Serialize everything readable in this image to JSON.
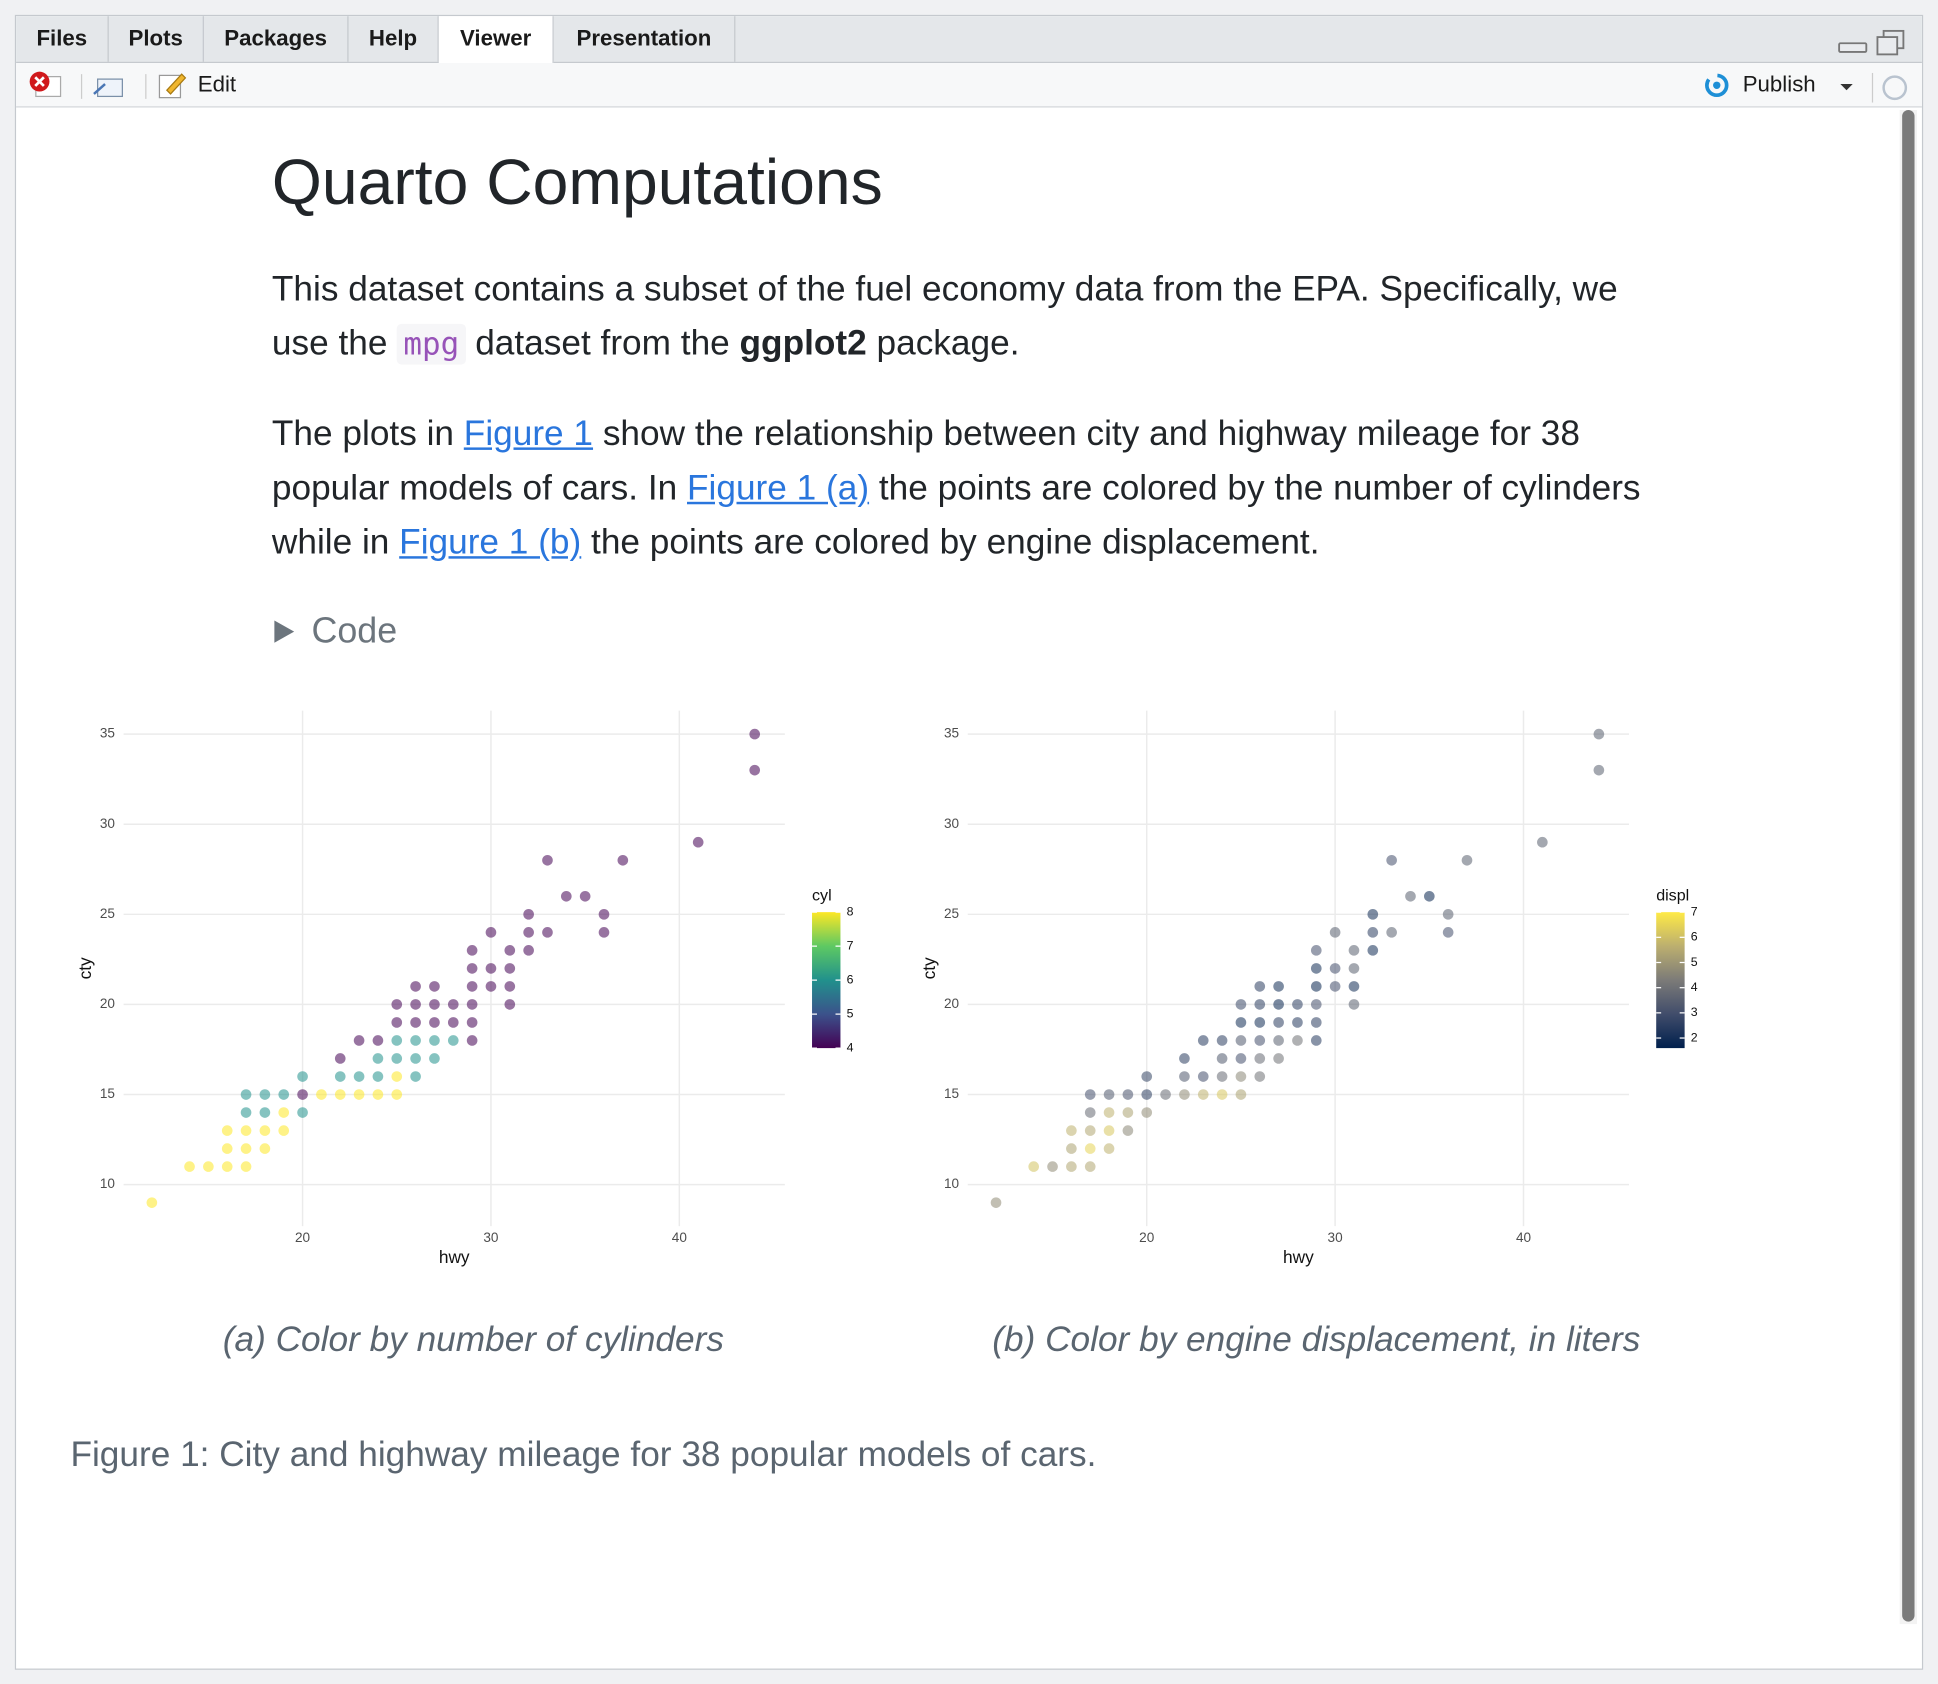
{
  "tabs": [
    "Files",
    "Plots",
    "Packages",
    "Help",
    "Viewer",
    "Presentation"
  ],
  "toolbar": {
    "edit": "Edit",
    "publish": "Publish"
  },
  "document": {
    "title": "Quarto Computations",
    "paragraphs": [
      [
        "This dataset contains a subset of the fuel economy data from the EPA. Specifically, we use the ",
        "mpg",
        " dataset from the ",
        "ggplot2",
        " package."
      ],
      [
        "The plots in ",
        "Figure 1",
        " show the relationship between city and highway mileage for 38 popular models of cars. In ",
        "Figure 1 (a)",
        " the points are colored by the number of cylinders while in ",
        "Figure 1 (b)",
        " the points are colored by engine displacement."
      ]
    ],
    "code_toggle": "Code",
    "figure_caption": "Figure 1: City and highway mileage for 38 popular models of cars."
  },
  "chart_data": [
    {
      "type": "scatter",
      "caption": "(a) Color by number of cylinders",
      "xlabel": "hwy",
      "ylabel": "cty",
      "legend_title": "cyl",
      "x": [
        12,
        14,
        15,
        16,
        17,
        16,
        17,
        18,
        16,
        17,
        18,
        19,
        17,
        18,
        19,
        20,
        17,
        18,
        19,
        20,
        21,
        22,
        23,
        24,
        25,
        20,
        22,
        23,
        24,
        25,
        26,
        22,
        24,
        25,
        26,
        27,
        23,
        24,
        25,
        26,
        27,
        28,
        29,
        25,
        26,
        27,
        28,
        29,
        25,
        26,
        27,
        28,
        29,
        31,
        26,
        27,
        29,
        30,
        31,
        29,
        30,
        31,
        29,
        31,
        32,
        30,
        32,
        33,
        36,
        32,
        36,
        34,
        35,
        33,
        37,
        41,
        44,
        44
      ],
      "values": [
        9,
        11,
        11,
        11,
        11,
        12,
        12,
        12,
        13,
        13,
        13,
        13,
        14,
        14,
        14,
        14,
        15,
        15,
        15,
        15,
        15,
        15,
        15,
        15,
        15,
        16,
        16,
        16,
        16,
        16,
        16,
        17,
        17,
        17,
        17,
        17,
        18,
        18,
        18,
        18,
        18,
        18,
        18,
        19,
        19,
        19,
        19,
        19,
        20,
        20,
        20,
        20,
        20,
        20,
        21,
        21,
        21,
        21,
        21,
        22,
        22,
        22,
        23,
        23,
        23,
        24,
        24,
        24,
        24,
        25,
        25,
        26,
        26,
        28,
        28,
        29,
        33,
        35
      ],
      "color_values": [
        8,
        8,
        8,
        8,
        8,
        8,
        8,
        8,
        8,
        8,
        8,
        8,
        6,
        6,
        8,
        6,
        6,
        6,
        6,
        4,
        8,
        8,
        8,
        8,
        8,
        6,
        6,
        6,
        6,
        8,
        6,
        4,
        6,
        6,
        6,
        6,
        4,
        4,
        6,
        6,
        6,
        6,
        4,
        4,
        4,
        4,
        4,
        4,
        4,
        4,
        4,
        4,
        4,
        4,
        4,
        4,
        4,
        4,
        4,
        4,
        4,
        4,
        4,
        4,
        4,
        4,
        4,
        4,
        4,
        4,
        4,
        4,
        4,
        4,
        4,
        4,
        4,
        4
      ],
      "colormap": [
        "#440154",
        "#3b528b",
        "#21918c",
        "#5ec962",
        "#fde725"
      ],
      "color_lim": [
        4,
        8
      ],
      "color_ticks": [
        4,
        5,
        6,
        7,
        8
      ],
      "point_alpha": 0.55,
      "xlim": [
        10.5,
        45.6
      ],
      "ylim": [
        7.7,
        36.3
      ],
      "xticks": [
        20,
        30,
        40
      ],
      "yticks": [
        10,
        15,
        20,
        25,
        30,
        35
      ],
      "grid": true
    },
    {
      "type": "scatter",
      "caption": "(b) Color by engine displacement, in liters",
      "xlabel": "hwy",
      "ylabel": "cty",
      "legend_title": "displ",
      "x": [
        12,
        14,
        15,
        16,
        17,
        16,
        17,
        18,
        16,
        17,
        18,
        19,
        17,
        18,
        19,
        20,
        17,
        18,
        19,
        20,
        21,
        22,
        23,
        24,
        25,
        20,
        22,
        23,
        24,
        25,
        26,
        22,
        24,
        25,
        26,
        27,
        23,
        24,
        25,
        26,
        27,
        28,
        29,
        25,
        26,
        27,
        28,
        29,
        25,
        26,
        27,
        28,
        29,
        31,
        26,
        27,
        29,
        30,
        31,
        29,
        30,
        31,
        29,
        31,
        32,
        30,
        32,
        33,
        36,
        32,
        36,
        34,
        35,
        33,
        37,
        41,
        44,
        44
      ],
      "values": [
        9,
        11,
        11,
        11,
        11,
        12,
        12,
        12,
        13,
        13,
        13,
        13,
        14,
        14,
        14,
        14,
        15,
        15,
        15,
        15,
        15,
        15,
        15,
        15,
        15,
        16,
        16,
        16,
        16,
        16,
        16,
        17,
        17,
        17,
        17,
        17,
        18,
        18,
        18,
        18,
        18,
        18,
        18,
        19,
        19,
        19,
        19,
        19,
        20,
        20,
        20,
        20,
        20,
        20,
        21,
        21,
        21,
        21,
        21,
        22,
        22,
        22,
        23,
        23,
        23,
        24,
        24,
        24,
        24,
        25,
        25,
        26,
        26,
        28,
        28,
        29,
        33,
        35
      ],
      "color_values": [
        4.7,
        6.1,
        4.7,
        5.4,
        5.4,
        5.3,
        6.5,
        5.7,
        5.7,
        5.4,
        6.2,
        4.6,
        3.8,
        5.7,
        5.3,
        4.7,
        3.0,
        3.3,
        3.1,
        2.5,
        3.8,
        4.7,
        5.7,
        6.2,
        5.3,
        2.7,
        3.3,
        3.0,
        3.8,
        4.6,
        4.0,
        2.5,
        3.3,
        3.0,
        3.8,
        4.0,
        2.4,
        2.5,
        3.3,
        3.0,
        3.5,
        4.0,
        2.4,
        2.0,
        2.0,
        2.5,
        2.4,
        2.5,
        2.8,
        2.5,
        1.8,
        2.5,
        3.0,
        3.5,
        2.5,
        2.0,
        1.8,
        3.0,
        2.0,
        2.0,
        3.0,
        3.5,
        3.0,
        3.5,
        2.0,
        3.5,
        2.5,
        3.5,
        3.0,
        2.0,
        3.5,
        3.5,
        1.8,
        3.0,
        3.5,
        3.5,
        3.5,
        3.5
      ],
      "colormap": [
        "#00204d",
        "#414d6b",
        "#7c7b78",
        "#bcaf6f",
        "#ffea46"
      ],
      "color_lim": [
        1.6,
        7
      ],
      "color_ticks": [
        2,
        3,
        4,
        5,
        6,
        7
      ],
      "point_alpha": 0.55,
      "xlim": [
        10.5,
        45.6
      ],
      "ylim": [
        7.7,
        36.3
      ],
      "xticks": [
        20,
        30,
        40
      ],
      "yticks": [
        10,
        15,
        20,
        25,
        30,
        35
      ],
      "grid": true
    }
  ]
}
